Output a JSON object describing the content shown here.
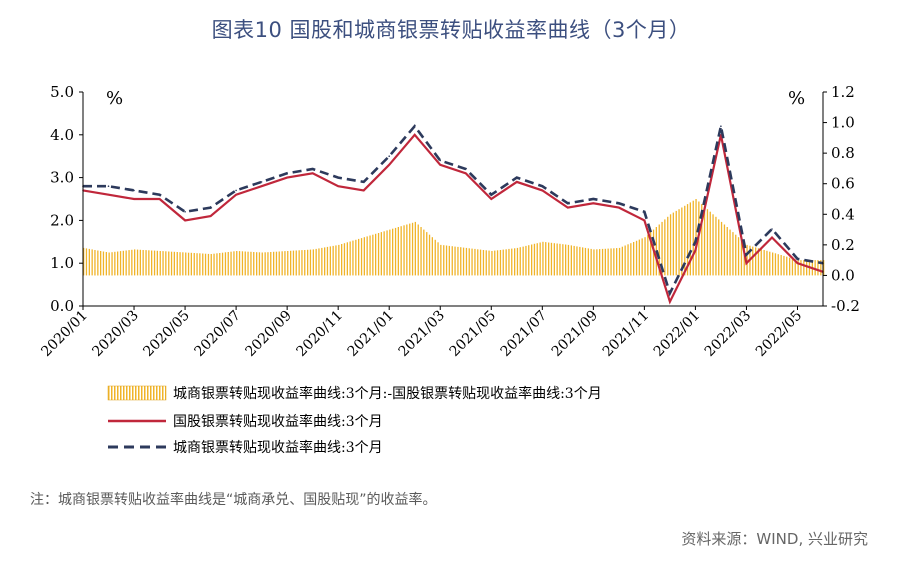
{
  "chart_data": {
    "type": "line",
    "title": "图表10  国股和城商银票转贴收益率曲线（3个月）",
    "y_left": {
      "unit": "%",
      "range": [
        0.0,
        5.0
      ],
      "ticks": [
        "5.0",
        "4.0",
        "3.0",
        "2.0",
        "1.0",
        "0.0"
      ]
    },
    "y_right": {
      "unit": "%",
      "range": [
        -0.2,
        1.2
      ],
      "ticks": [
        "1.2",
        "1.0",
        "0.8",
        "0.6",
        "0.4",
        "0.2",
        "0.0",
        "-0.2"
      ]
    },
    "x_ticks": [
      "2020/01",
      "2020/03",
      "2020/05",
      "2020/07",
      "2020/09",
      "2020/11",
      "2021/01",
      "2021/03",
      "2021/05",
      "2021/07",
      "2021/09",
      "2021/11",
      "2022/01",
      "2022/03",
      "2022/05"
    ],
    "x_range": [
      "2020/01",
      "2022/06"
    ],
    "series": [
      {
        "name": "城商银票转贴现收益率曲线:3个月:-国股银票转贴现收益率曲线:3个月",
        "type": "bar",
        "axis": "right",
        "color": "#f0b429",
        "x": [
          "2020/01",
          "2020/02",
          "2020/03",
          "2020/04",
          "2020/05",
          "2020/06",
          "2020/07",
          "2020/08",
          "2020/09",
          "2020/10",
          "2020/11",
          "2020/12",
          "2021/01",
          "2021/02",
          "2021/03",
          "2021/04",
          "2021/05",
          "2021/06",
          "2021/07",
          "2021/08",
          "2021/09",
          "2021/10",
          "2021/11",
          "2021/12",
          "2022/01",
          "2022/02",
          "2022/03",
          "2022/04",
          "2022/05",
          "2022/06"
        ],
        "values": [
          0.18,
          0.15,
          0.17,
          0.16,
          0.15,
          0.14,
          0.16,
          0.15,
          0.16,
          0.17,
          0.2,
          0.25,
          0.3,
          0.35,
          0.2,
          0.18,
          0.16,
          0.18,
          0.22,
          0.2,
          0.17,
          0.18,
          0.25,
          0.4,
          0.5,
          0.35,
          0.2,
          0.15,
          0.1,
          0.1
        ]
      },
      {
        "name": "国股银票转贴现收益率曲线:3个月",
        "type": "line",
        "axis": "left",
        "color": "#c0273b",
        "x": [
          "2020/01",
          "2020/02",
          "2020/03",
          "2020/04",
          "2020/05",
          "2020/06",
          "2020/07",
          "2020/08",
          "2020/09",
          "2020/10",
          "2020/11",
          "2020/12",
          "2021/01",
          "2021/02",
          "2021/03",
          "2021/04",
          "2021/05",
          "2021/06",
          "2021/07",
          "2021/08",
          "2021/09",
          "2021/10",
          "2021/11",
          "2021/12",
          "2022/01",
          "2022/02",
          "2022/03",
          "2022/04",
          "2022/05",
          "2022/06"
        ],
        "values": [
          2.7,
          2.6,
          2.5,
          2.5,
          2.0,
          2.1,
          2.6,
          2.8,
          3.0,
          3.1,
          2.8,
          2.7,
          3.3,
          4.0,
          3.3,
          3.1,
          2.5,
          2.9,
          2.7,
          2.3,
          2.4,
          2.3,
          2.0,
          0.1,
          1.3,
          4.0,
          1.0,
          1.6,
          1.0,
          0.8
        ]
      },
      {
        "name": "城商银票转贴现收益率曲线:3个月",
        "type": "line",
        "axis": "left",
        "color": "#2d3a5c",
        "x": [
          "2020/01",
          "2020/02",
          "2020/03",
          "2020/04",
          "2020/05",
          "2020/06",
          "2020/07",
          "2020/08",
          "2020/09",
          "2020/10",
          "2020/11",
          "2020/12",
          "2021/01",
          "2021/02",
          "2021/03",
          "2021/04",
          "2021/05",
          "2021/06",
          "2021/07",
          "2021/08",
          "2021/09",
          "2021/10",
          "2021/11",
          "2021/12",
          "2022/01",
          "2022/02",
          "2022/03",
          "2022/04",
          "2022/05",
          "2022/06"
        ],
        "values": [
          2.8,
          2.8,
          2.7,
          2.6,
          2.2,
          2.3,
          2.7,
          2.9,
          3.1,
          3.2,
          3.0,
          2.9,
          3.5,
          4.2,
          3.4,
          3.2,
          2.6,
          3.0,
          2.8,
          2.4,
          2.5,
          2.4,
          2.2,
          0.3,
          1.5,
          4.2,
          1.2,
          1.8,
          1.1,
          1.0
        ]
      }
    ],
    "legend_placement": "bottom-center"
  },
  "note": "注：城商银票转贴收益率曲线是“城商承兑、国股贴现”的收益率。",
  "source": "资料来源：WIND, 兴业研究"
}
